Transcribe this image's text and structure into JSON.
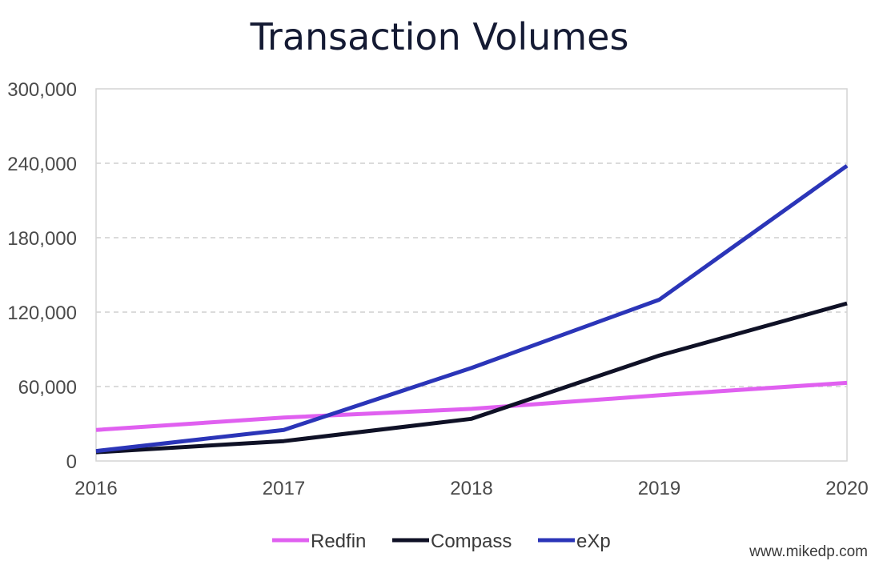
{
  "chart_data": {
    "type": "line",
    "title": "Transaction Volumes",
    "xlabel": "",
    "ylabel": "",
    "x": [
      "2016",
      "2017",
      "2018",
      "2019",
      "2020"
    ],
    "ylim": [
      0,
      300000
    ],
    "y_ticks": [
      "0",
      "60,000",
      "120,000",
      "180,000",
      "240,000",
      "300,000"
    ],
    "y_tick_values": [
      0,
      60000,
      120000,
      180000,
      240000,
      300000
    ],
    "grid": "horizontal dashed",
    "legend_position": "bottom",
    "series": [
      {
        "name": "Redfin",
        "color": "#e060f0",
        "values": [
          25000,
          35000,
          42000,
          53000,
          63000
        ]
      },
      {
        "name": "Compass",
        "color": "#0f1126",
        "values": [
          7000,
          16000,
          34000,
          85000,
          127000
        ]
      },
      {
        "name": "eXp",
        "color": "#2b35b8",
        "values": [
          8000,
          25000,
          75000,
          130000,
          238000
        ]
      }
    ]
  },
  "credit": "www.mikedp.com"
}
